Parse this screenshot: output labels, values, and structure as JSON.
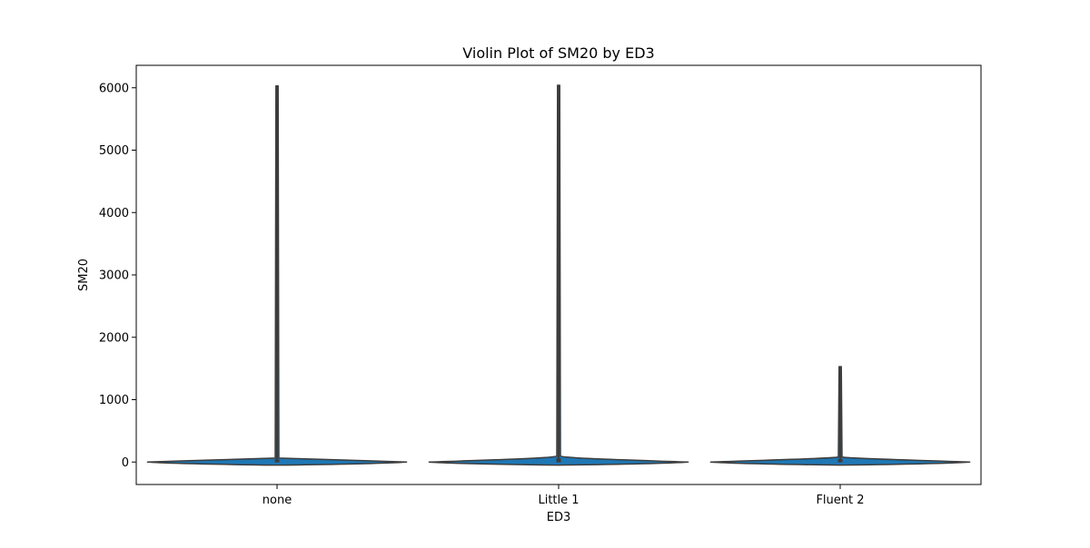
{
  "chart_data": {
    "type": "violin",
    "title": "Violin Plot of SM20 by ED3",
    "xlabel": "ED3",
    "ylabel": "SM20",
    "categories": [
      "none",
      "Little 1",
      "Fluent 2"
    ],
    "yticks": [
      0,
      1000,
      2000,
      3000,
      4000,
      5000,
      6000
    ],
    "ylim": [
      -360,
      6360
    ],
    "grid": false,
    "legend": "none",
    "violin_color": "#1f77b4",
    "edge_color": "#3d3d3d",
    "violins": [
      {
        "category": "none",
        "min": -50,
        "max": 6030,
        "mode_value": 0,
        "whisker_top": 6030,
        "box_top": 40,
        "box_bottom": -5,
        "max_half_width_fraction": 0.46
      },
      {
        "category": "Little 1",
        "min": -50,
        "max": 6040,
        "mode_value": 0,
        "whisker_top": 6040,
        "box_top": 60,
        "box_bottom": -5,
        "max_half_width_fraction": 0.46
      },
      {
        "category": "Fluent 2",
        "min": -50,
        "max": 1530,
        "mode_value": 0,
        "whisker_top": 1530,
        "box_top": 50,
        "box_bottom": -5,
        "max_half_width_fraction": 0.46
      }
    ]
  }
}
